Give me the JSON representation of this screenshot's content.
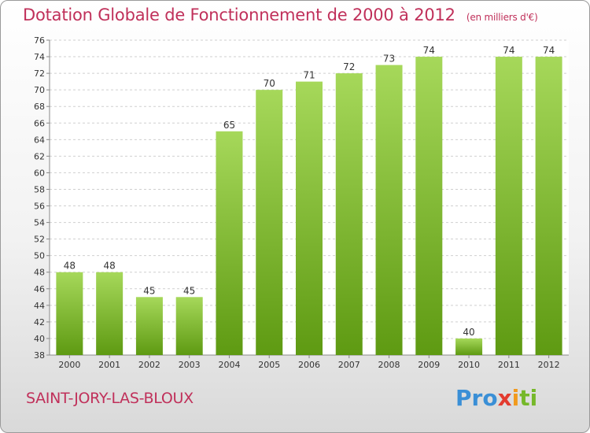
{
  "title": "Dotation Globale de Fonctionnement de 2000 à 2012",
  "unit_note": "(en milliers d'€)",
  "commune": "SAINT-JORY-LAS-BLOUX",
  "logo": {
    "part1": "Pro",
    "part2": "x",
    "part3": "i",
    "part4": "ti"
  },
  "colors": {
    "title": "#c0305a",
    "bar_top": "#a6d85a",
    "bar_bottom": "#5e9a12",
    "grid": "#cfcfcf"
  },
  "chart_data": {
    "type": "bar",
    "categories": [
      "2000",
      "2001",
      "2002",
      "2003",
      "2004",
      "2005",
      "2006",
      "2007",
      "2008",
      "2009",
      "2010",
      "2011",
      "2012"
    ],
    "values": [
      48,
      48,
      45,
      45,
      65,
      70,
      71,
      72,
      73,
      74,
      40,
      74,
      74
    ],
    "ylim": [
      38,
      76
    ],
    "yticks": [
      38,
      40,
      42,
      44,
      46,
      48,
      50,
      52,
      54,
      56,
      58,
      60,
      62,
      64,
      66,
      68,
      70,
      72,
      74,
      76
    ],
    "grid": true
  }
}
